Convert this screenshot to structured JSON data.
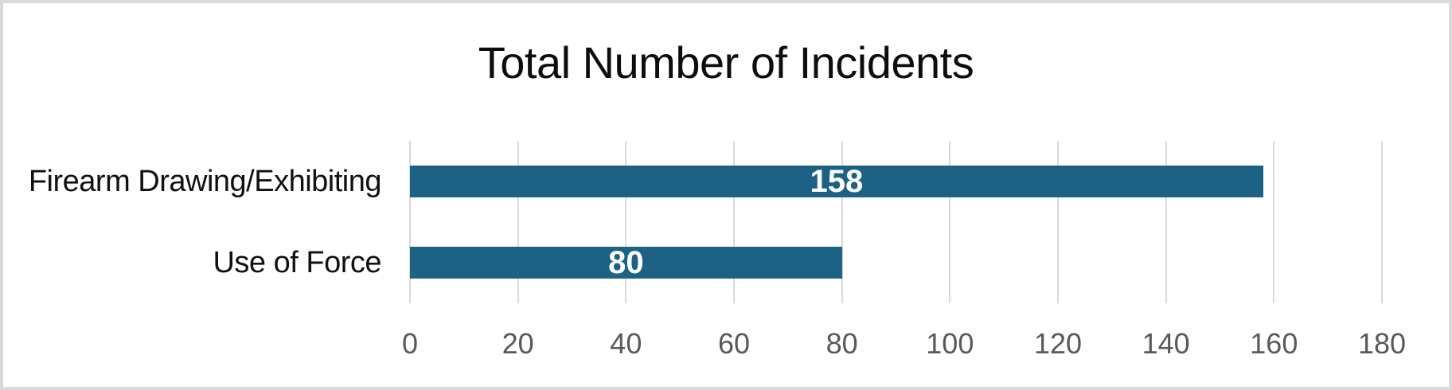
{
  "chart": {
    "title": "Total Number of Incidents"
  },
  "chart_data": {
    "type": "bar",
    "orientation": "horizontal",
    "title": "Total Number of Incidents",
    "categories": [
      "Firearm Drawing/Exhibiting",
      "Use of Force"
    ],
    "values": [
      158,
      80
    ],
    "data_labels": [
      "158",
      "80"
    ],
    "data_label_position": "inside-center",
    "xlabel": "",
    "ylabel": "",
    "xlim": [
      0,
      180
    ],
    "xticks": [
      0,
      20,
      40,
      60,
      80,
      100,
      120,
      140,
      160,
      180
    ],
    "grid": "vertical-gridlines-on",
    "legend": "none",
    "colors": {
      "bar": "#1D6285",
      "gridline": "#D9D9D9",
      "tick_label": "#595959",
      "category_label": "#111111",
      "data_label": "#FFFFFF",
      "title": "#0D0D0D",
      "frame_border": "#DADADA",
      "background": "#FFFFFF"
    }
  }
}
